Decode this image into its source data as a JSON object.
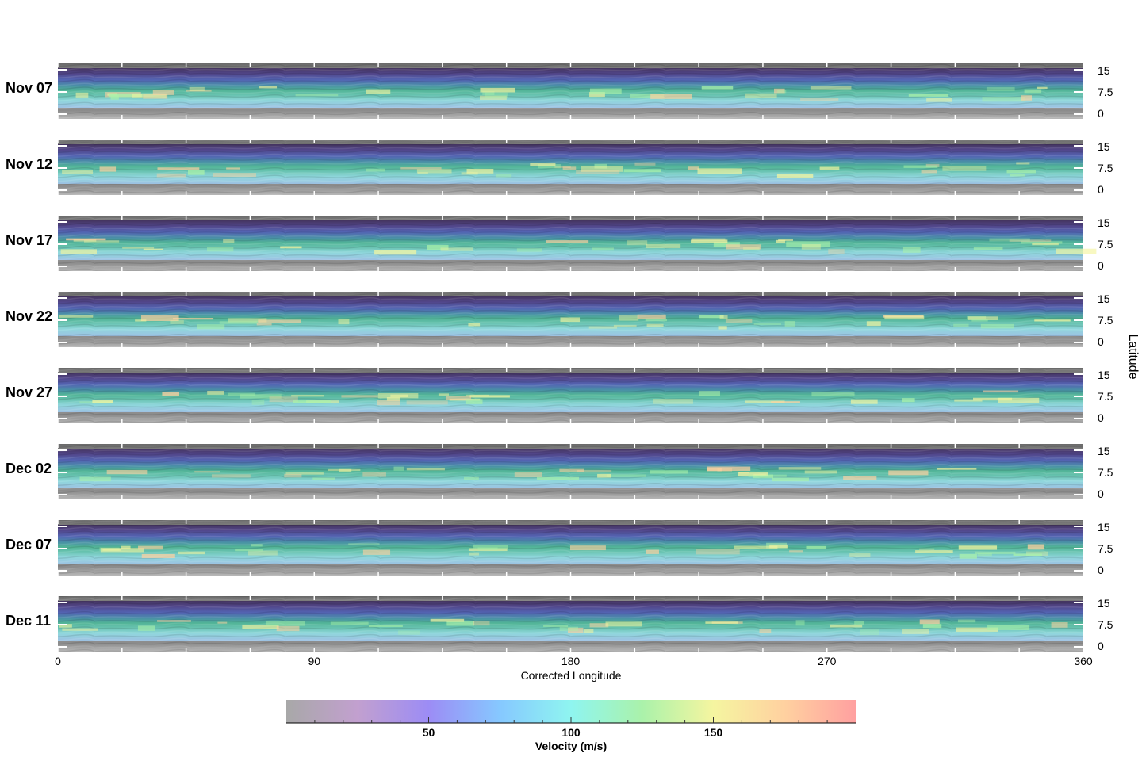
{
  "chart_data": {
    "type": "heatmap",
    "panels": [
      {
        "date": "Nov 07"
      },
      {
        "date": "Nov 12"
      },
      {
        "date": "Nov 17"
      },
      {
        "date": "Nov 22"
      },
      {
        "date": "Nov 27"
      },
      {
        "date": "Dec 02"
      },
      {
        "date": "Dec 07"
      },
      {
        "date": "Dec 11"
      }
    ],
    "x_axis": {
      "label": "Corrected Longitude",
      "range": [
        0,
        360
      ],
      "ticks": [
        "0",
        "90",
        "180",
        "270",
        "360"
      ]
    },
    "y_axis": {
      "label": "Latitude",
      "range": [
        0,
        15
      ],
      "ticks": [
        "0",
        "7.5",
        "15"
      ]
    },
    "colorbar": {
      "label": "Velocity (m/s)",
      "ticks": [
        "50",
        "100",
        "150"
      ],
      "colors": [
        "#a8a8a8",
        "#c2a0cf",
        "#9c8cf5",
        "#86c8ff",
        "#8ff5f0",
        "#aaf2aa",
        "#f5f5a0",
        "#ffd1a0",
        "#ffa0a0"
      ]
    }
  }
}
